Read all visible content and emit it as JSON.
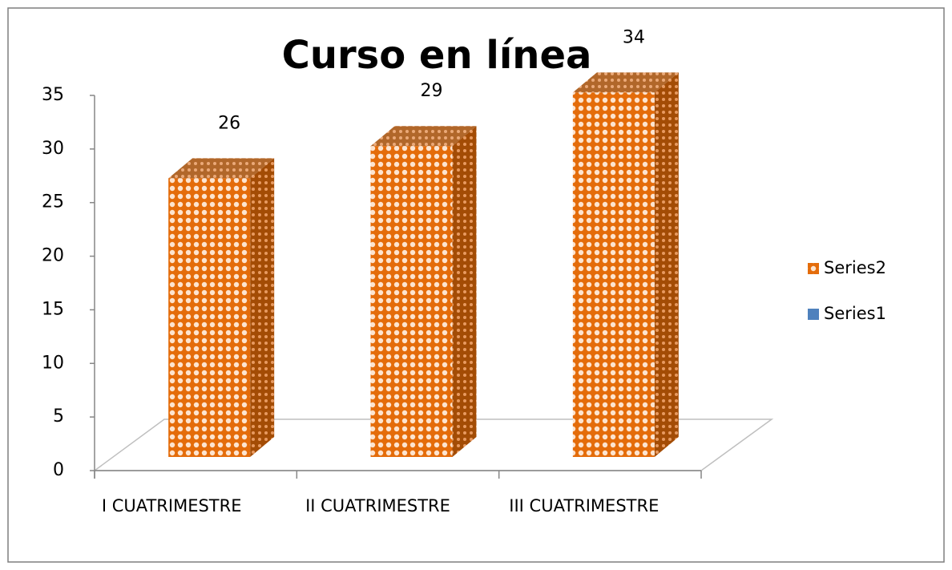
{
  "chart_data": {
    "type": "bar3d",
    "title": "Curso en línea",
    "categories": [
      "I CUATRIMESTRE",
      "II CUATRIMESTRE",
      "III CUATRIMESTRE"
    ],
    "series": [
      {
        "name": "Series2",
        "color": "#e46c0a",
        "values": [
          26,
          29,
          34
        ]
      },
      {
        "name": "Series1",
        "color": "#4f81bd",
        "values": [
          null,
          null,
          null
        ]
      }
    ],
    "ylim": [
      0,
      35
    ],
    "yticks": [
      0,
      5,
      10,
      15,
      20,
      25,
      30,
      35
    ],
    "grid": false,
    "legend": "right"
  }
}
